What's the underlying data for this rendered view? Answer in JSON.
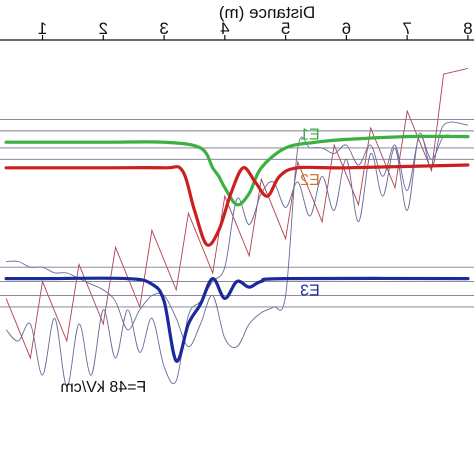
{
  "chart_data": {
    "type": "line",
    "mirrored": true,
    "x_axis": {
      "label": "Distance (m)",
      "position": "top",
      "direction": "right-to-left",
      "ticks": [
        1,
        2,
        3,
        4,
        5,
        6,
        7,
        8
      ],
      "xlim": [
        0.3,
        8.1
      ]
    },
    "y_axis": {
      "label": "",
      "ticks": [],
      "ylim": [
        -0.5,
        1.0
      ]
    },
    "grid": false,
    "potential_profile": {
      "color": "#b04050",
      "segments": [
        {
          "x": [
            8.0,
            7.6,
            7.4,
            7.0,
            6.8,
            6.4,
            6.2,
            5.8,
            5.6,
            5.2,
            5.0,
            4.6,
            4.4,
            4.0,
            3.8,
            3.4,
            3.2,
            2.8,
            2.6,
            2.2,
            2.0,
            1.6,
            1.4,
            1.0,
            0.8,
            0.4
          ],
          "y": [
            0.9,
            0.88,
            0.54,
            0.75,
            0.48,
            0.69,
            0.42,
            0.63,
            0.36,
            0.57,
            0.3,
            0.51,
            0.24,
            0.45,
            0.18,
            0.39,
            0.12,
            0.33,
            0.06,
            0.27,
            0.0,
            0.21,
            -0.06,
            0.15,
            -0.12,
            0.09
          ]
        }
      ]
    },
    "levels": {
      "color": "#7a7a90",
      "values": [
        0.72,
        0.68,
        0.62,
        0.58,
        0.2,
        0.15,
        0.1,
        0.06
      ]
    },
    "series": [
      {
        "name": "E1",
        "color": "#3cb040",
        "baseline": 0.64,
        "x": [
          8.0,
          7.0,
          6.0,
          5.5,
          5.0,
          4.6,
          4.4,
          4.2,
          4.0,
          3.9,
          3.8,
          3.6,
          3.0,
          2.0,
          0.4
        ],
        "y": [
          0.66,
          0.66,
          0.65,
          0.64,
          0.62,
          0.55,
          0.46,
          0.42,
          0.48,
          0.52,
          0.55,
          0.62,
          0.64,
          0.64,
          0.64
        ]
      },
      {
        "name": "E2",
        "color": "#cc2020",
        "baseline": 0.55,
        "x": [
          8.0,
          6.0,
          5.2,
          4.9,
          4.7,
          4.5,
          4.3,
          4.1,
          3.9,
          3.7,
          3.5,
          3.3,
          3.0,
          2.0,
          0.4
        ],
        "y": [
          0.56,
          0.55,
          0.55,
          0.52,
          0.45,
          0.5,
          0.55,
          0.46,
          0.33,
          0.28,
          0.4,
          0.54,
          0.55,
          0.55,
          0.55
        ]
      },
      {
        "name": "E3",
        "color": "#1a2a9a",
        "baseline": 0.16,
        "x": [
          8.0,
          5.0,
          4.6,
          4.4,
          4.2,
          4.0,
          3.8,
          3.6,
          3.4,
          3.2,
          3.0,
          2.8,
          2.4,
          1.0,
          0.4
        ],
        "y": [
          0.16,
          0.16,
          0.15,
          0.13,
          0.15,
          0.09,
          0.16,
          0.07,
          0.0,
          -0.13,
          0.08,
          0.14,
          0.16,
          0.16,
          0.16
        ]
      }
    ],
    "wavefunctions": {
      "color": "#6a6a9a",
      "curves": [
        {
          "x": [
            8.0,
            7.6,
            7.4,
            7.2,
            7.0,
            6.8,
            6.6,
            6.4,
            6.2,
            6.0,
            5.8,
            5.6,
            5.4,
            5.2,
            5.0,
            4.8,
            4.6,
            4.4,
            4.2,
            4.0,
            3.8,
            3.6,
            3.4,
            3.2,
            3.0,
            2.8,
            2.6,
            2.4,
            2.2,
            2.0,
            1.8,
            1.6,
            1.4,
            1.2,
            1.0,
            0.8,
            0.6,
            0.4
          ],
          "y": [
            0.7,
            0.7,
            0.55,
            0.67,
            0.4,
            0.62,
            0.45,
            0.6,
            0.36,
            0.58,
            0.4,
            0.52,
            0.38,
            0.5,
            0.41,
            0.5,
            0.46,
            0.35,
            0.44,
            0.2,
            0.15,
            0.08,
            0.03,
            -0.2,
            -0.15,
            0.02,
            -0.1,
            0.05,
            -0.12,
            0.05,
            -0.18,
            0.0,
            -0.22,
            0.02,
            -0.18,
            0.0,
            -0.06,
            -0.02
          ]
        },
        {
          "x": [
            8.0,
            7.8,
            7.6,
            7.4,
            7.2,
            7.0,
            6.8,
            6.6,
            6.4,
            6.2,
            6.0,
            5.8,
            5.6,
            5.4,
            5.2,
            5.0,
            4.8,
            4.6,
            4.4,
            4.2,
            4.0,
            3.8,
            3.6,
            3.4,
            3.2,
            3.0,
            2.8,
            2.6,
            2.4,
            2.2,
            2.0,
            1.8,
            1.6,
            1.4,
            1.2,
            1.0,
            0.8,
            0.6,
            0.4
          ],
          "y": [
            0.66,
            0.66,
            0.66,
            0.58,
            0.66,
            0.47,
            0.63,
            0.52,
            0.63,
            0.56,
            0.63,
            0.6,
            0.62,
            0.62,
            0.62,
            0.1,
            0.06,
            0.04,
            0.0,
            -0.08,
            -0.05,
            0.1,
            0.0,
            -0.08,
            0.02,
            0.1,
            0.1,
            0.05,
            -0.02,
            0.08,
            0.12,
            0.14,
            0.16,
            0.18,
            0.18,
            0.2,
            0.2,
            0.22,
            0.22
          ]
        }
      ]
    },
    "labels": [
      {
        "text": "E1",
        "color": "#3cb040",
        "x": 5.4,
        "y": 0.65
      },
      {
        "text": "E2",
        "color": "#c87830",
        "x": 5.4,
        "y": 0.49
      },
      {
        "text": "E3",
        "color": "#1a2a9a",
        "x": 5.4,
        "y": 0.1
      },
      {
        "text": "F=48 kV/cm",
        "color": "#111111",
        "x": 2.0,
        "y": -0.24
      }
    ]
  }
}
